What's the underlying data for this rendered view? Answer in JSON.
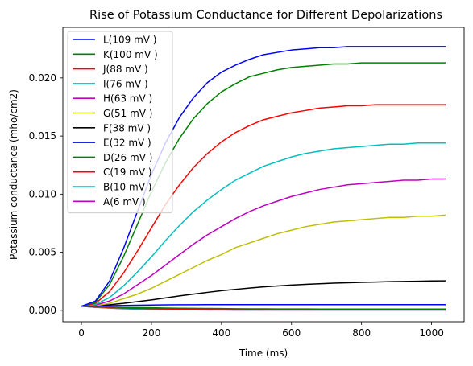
{
  "chart_data": {
    "type": "line",
    "title": "Rise of Potassium Conductance for Different Depolarizations",
    "xlabel": "Time (ms)",
    "ylabel": "Potassium conductance (mho/cm2)",
    "xlim": [
      -53,
      1093
    ],
    "ylim": [
      -0.00098,
      0.02435
    ],
    "x_ticks": [
      0,
      200,
      400,
      600,
      800,
      1000
    ],
    "y_ticks": [
      0.0,
      0.005,
      0.01,
      0.015,
      0.02
    ],
    "x_tick_labels": [
      "0",
      "200",
      "400",
      "600",
      "800",
      "1000"
    ],
    "y_tick_labels": [
      "0.000",
      "0.005",
      "0.010",
      "0.015",
      "0.020"
    ],
    "grid": false,
    "legend_position": "upper-left",
    "x": [
      0,
      40,
      80,
      120,
      160,
      200,
      240,
      280,
      320,
      360,
      400,
      440,
      480,
      520,
      560,
      600,
      640,
      680,
      720,
      760,
      800,
      840,
      880,
      920,
      960,
      1000,
      1040
    ],
    "series": [
      {
        "name": "L(109 mV )",
        "color": "#0000ff",
        "values": [
          0.00035,
          0.0008,
          0.0025,
          0.0053,
          0.0085,
          0.0117,
          0.0144,
          0.0166,
          0.0183,
          0.0196,
          0.0205,
          0.0211,
          0.0216,
          0.022,
          0.0222,
          0.0224,
          0.0225,
          0.0226,
          0.0226,
          0.0227,
          0.0227,
          0.0227,
          0.0227,
          0.0227,
          0.0227,
          0.0227,
          0.0227
        ]
      },
      {
        "name": "K(100 mV )",
        "color": "#008000",
        "values": [
          0.00035,
          0.0007,
          0.0022,
          0.0046,
          0.0074,
          0.0102,
          0.0127,
          0.0148,
          0.0165,
          0.0178,
          0.0188,
          0.0195,
          0.0201,
          0.0204,
          0.0207,
          0.0209,
          0.021,
          0.0211,
          0.0212,
          0.0212,
          0.0213,
          0.0213,
          0.0213,
          0.0213,
          0.0213,
          0.0213,
          0.0213
        ]
      },
      {
        "name": "J(88 mV )",
        "color": "#ff0000",
        "values": [
          0.00035,
          0.0006,
          0.0016,
          0.0032,
          0.0051,
          0.0071,
          0.0091,
          0.0108,
          0.0123,
          0.0135,
          0.0145,
          0.0153,
          0.0159,
          0.0164,
          0.0167,
          0.017,
          0.0172,
          0.0174,
          0.0175,
          0.0176,
          0.0176,
          0.0177,
          0.0177,
          0.0177,
          0.0177,
          0.0177,
          0.0177
        ]
      },
      {
        "name": "I(76 mV )",
        "color": "#00bfbf",
        "values": [
          0.00035,
          0.0005,
          0.0011,
          0.0021,
          0.0033,
          0.0046,
          0.006,
          0.0073,
          0.0085,
          0.0095,
          0.0104,
          0.0112,
          0.0118,
          0.0124,
          0.0128,
          0.0132,
          0.0135,
          0.0137,
          0.0139,
          0.014,
          0.0141,
          0.0142,
          0.0143,
          0.0143,
          0.0144,
          0.0144,
          0.0144
        ]
      },
      {
        "name": "H(63 mV )",
        "color": "#bf00bf",
        "values": [
          0.00035,
          0.00045,
          0.0008,
          0.0014,
          0.0022,
          0.003,
          0.0039,
          0.0048,
          0.0057,
          0.0065,
          0.0072,
          0.0079,
          0.0085,
          0.009,
          0.0094,
          0.0098,
          0.0101,
          0.0104,
          0.0106,
          0.0108,
          0.0109,
          0.011,
          0.0111,
          0.0112,
          0.0112,
          0.0113,
          0.0113
        ]
      },
      {
        "name": "G(51 mV )",
        "color": "#bfbf00",
        "values": [
          0.00035,
          0.0004,
          0.0006,
          0.001,
          0.0014,
          0.0019,
          0.0025,
          0.0031,
          0.0037,
          0.0043,
          0.0048,
          0.0054,
          0.0058,
          0.0062,
          0.0066,
          0.0069,
          0.0072,
          0.0074,
          0.0076,
          0.0077,
          0.0078,
          0.0079,
          0.008,
          0.008,
          0.0081,
          0.0081,
          0.0082
        ]
      },
      {
        "name": "F(38 mV )",
        "color": "#000000",
        "values": [
          0.00035,
          0.0004,
          0.00048,
          0.0006,
          0.00075,
          0.0009,
          0.00107,
          0.00124,
          0.0014,
          0.00155,
          0.00169,
          0.00181,
          0.00192,
          0.00202,
          0.0021,
          0.00218,
          0.00224,
          0.00229,
          0.00234,
          0.00238,
          0.00241,
          0.00244,
          0.00247,
          0.00249,
          0.00251,
          0.00253,
          0.00254
        ]
      },
      {
        "name": "E(32 mV )",
        "color": "#0000ff",
        "values": [
          0.00035,
          0.00038,
          0.0004,
          0.00042,
          0.00044,
          0.00046,
          0.00047,
          0.00048,
          0.00048,
          0.00049,
          0.00049,
          0.00049,
          0.00049,
          0.00049,
          0.00049,
          0.00049,
          0.00049,
          0.00049,
          0.00049,
          0.00049,
          0.00049,
          0.00049,
          0.00049,
          0.00049,
          0.00049,
          0.00049,
          0.00049
        ]
      },
      {
        "name": "D(26 mV )",
        "color": "#008000",
        "values": [
          0.00035,
          0.00032,
          0.00029,
          0.00026,
          0.00024,
          0.00022,
          0.0002,
          0.00018,
          0.00017,
          0.00016,
          0.00015,
          0.00014,
          0.00013,
          0.00013,
          0.00012,
          0.00012,
          0.00012,
          0.00011,
          0.00011,
          0.00011,
          0.00011,
          0.00011,
          0.00011,
          0.00011,
          0.00011,
          0.00011,
          0.00011
        ]
      },
      {
        "name": "C(19 mV )",
        "color": "#ff0000",
        "values": [
          0.00035,
          0.00029,
          0.00024,
          0.0002,
          0.00017,
          0.00014,
          0.00012,
          0.0001,
          9e-05,
          8e-05,
          7e-05,
          6e-05,
          6e-05,
          5e-05,
          5e-05,
          5e-05,
          5e-05,
          5e-05,
          5e-05,
          5e-05,
          5e-05,
          5e-05,
          5e-05,
          5e-05,
          5e-05,
          5e-05,
          5e-05
        ]
      },
      {
        "name": "B(10 mV )",
        "color": "#00bfbf",
        "values": [
          0.00035,
          0.00027,
          0.0002,
          0.00015,
          0.00012,
          9e-05,
          7e-05,
          6e-05,
          5e-05,
          4e-05,
          4e-05,
          3e-05,
          3e-05,
          3e-05,
          3e-05,
          3e-05,
          3e-05,
          3e-05,
          3e-05,
          3e-05,
          3e-05,
          3e-05,
          3e-05,
          3e-05,
          3e-05,
          3e-05,
          3e-05
        ]
      },
      {
        "name": "A(6 mV )",
        "color": "#bf00bf",
        "values": [
          0.00035,
          0.00026,
          0.00019,
          0.00014,
          0.0001,
          8e-05,
          6e-05,
          5e-05,
          4e-05,
          3e-05,
          3e-05,
          2e-05,
          2e-05,
          2e-05,
          2e-05,
          2e-05,
          2e-05,
          2e-05,
          2e-05,
          2e-05,
          2e-05,
          2e-05,
          2e-05,
          2e-05,
          2e-05,
          2e-05,
          2e-05
        ]
      }
    ]
  }
}
